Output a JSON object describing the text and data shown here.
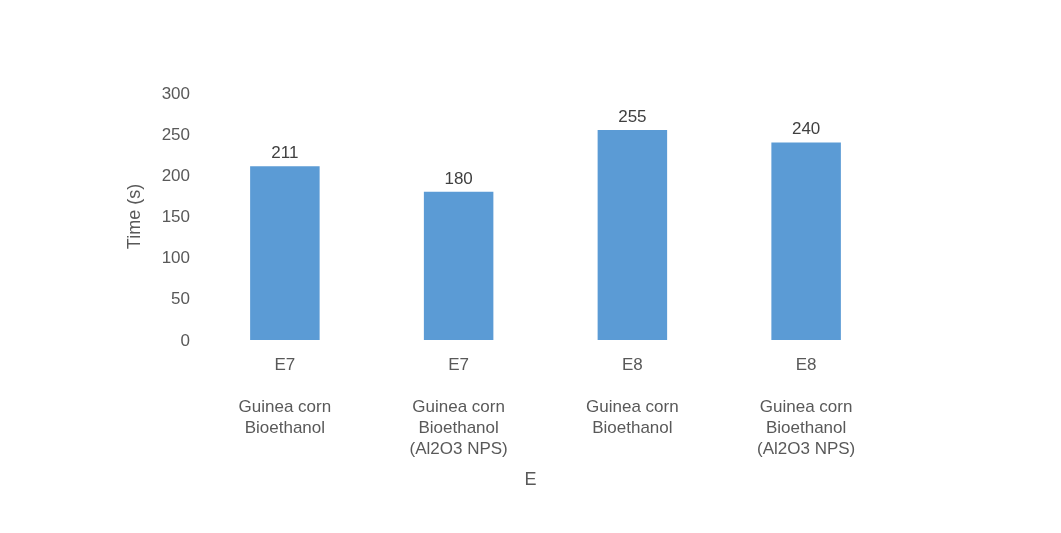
{
  "chart_data": {
    "type": "bar",
    "annotations": [
      "E"
    ],
    "ylabel": "Time (s)",
    "categories": [
      "E7\n\nGuinea corn\nBioethanol",
      "E7\n\nGuinea corn\nBioethanol\n(Al2O3 NPS)",
      "E8\n\nGuinea corn\nBioethanol",
      "E8\n\nGuinea corn\nBioethanol\n(Al2O3 NPS)"
    ],
    "values": [
      211,
      180,
      255,
      240
    ],
    "color": "#5b9bd5",
    "ylim": [
      0,
      300
    ],
    "yticks": [
      0,
      50,
      100,
      150,
      200,
      250,
      300
    ],
    "grid": false,
    "data_labels": true
  }
}
